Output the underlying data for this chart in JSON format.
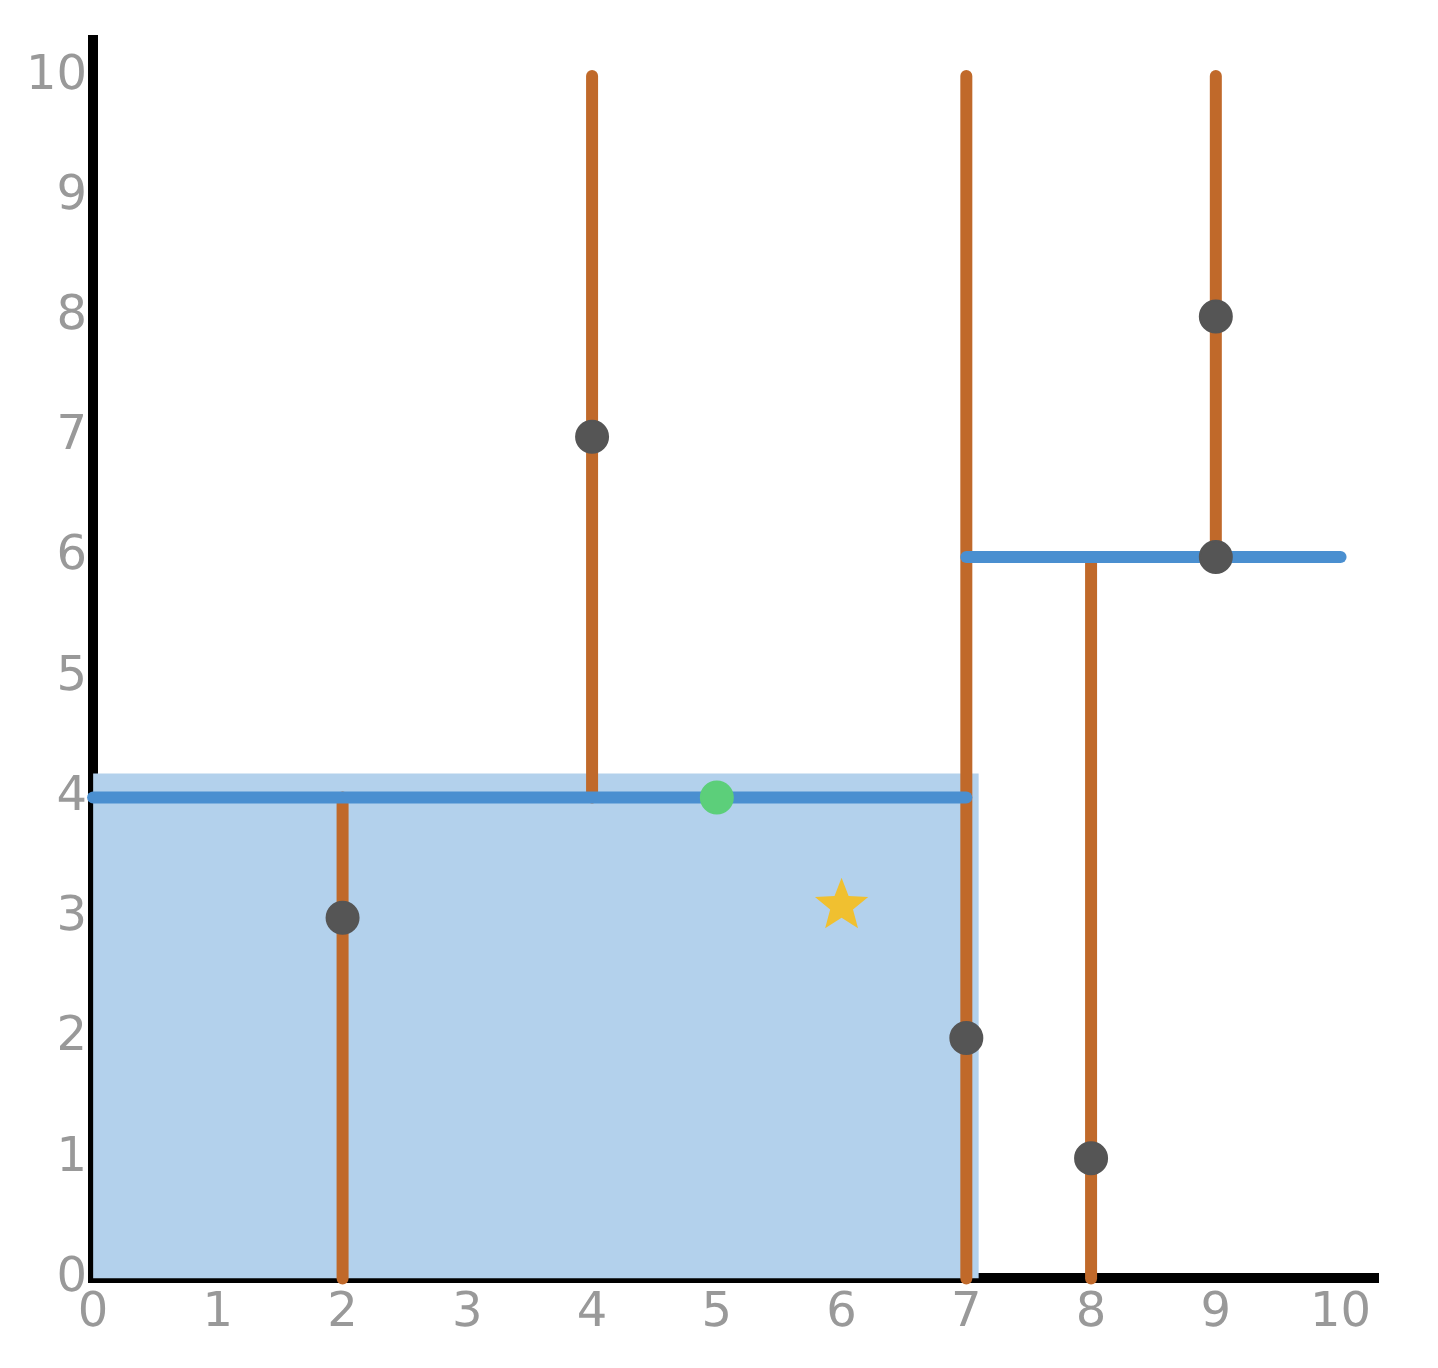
{
  "chart_data": {
    "type": "scatter",
    "xlim": [
      0,
      10.3
    ],
    "ylim": [
      0,
      10.3
    ],
    "xticks": [
      0,
      1,
      2,
      3,
      4,
      5,
      6,
      7,
      8,
      9,
      10
    ],
    "yticks": [
      0,
      1,
      2,
      3,
      4,
      5,
      6,
      7,
      8,
      9,
      10
    ],
    "grid": false,
    "legend": false,
    "series": [
      {
        "type": "area",
        "color": "#b3d1ec",
        "x": [
          0,
          7.1
        ],
        "values": [
          4.2,
          4.2
        ]
      },
      {
        "type": "line",
        "color": "#c0692a",
        "x": [
          2,
          2
        ],
        "values": [
          0,
          4
        ]
      },
      {
        "type": "line",
        "color": "#c0692a",
        "x": [
          4,
          4
        ],
        "values": [
          4,
          10
        ]
      },
      {
        "type": "line",
        "color": "#c0692a",
        "x": [
          7,
          7
        ],
        "values": [
          0,
          10
        ]
      },
      {
        "type": "line",
        "color": "#c0692a",
        "x": [
          8,
          8
        ],
        "values": [
          0,
          6
        ]
      },
      {
        "type": "line",
        "color": "#c0692a",
        "x": [
          9,
          9
        ],
        "values": [
          6,
          10
        ]
      },
      {
        "type": "line",
        "color": "#4a8fd0",
        "x": [
          0,
          7
        ],
        "values": [
          4,
          4
        ]
      },
      {
        "type": "line",
        "color": "#4a8fd0",
        "x": [
          7,
          10
        ],
        "values": [
          6,
          6
        ]
      },
      {
        "marker": "circle",
        "color": "#555555",
        "x": [
          2,
          4,
          7,
          8,
          9,
          9
        ],
        "values": [
          3,
          7,
          2,
          1,
          6,
          8
        ]
      },
      {
        "marker": "circle",
        "color": "#5ccf7a",
        "x": [
          5
        ],
        "values": [
          4
        ]
      },
      {
        "marker": "star",
        "color": "#f0c030",
        "x": [
          6
        ],
        "values": [
          3.1
        ]
      }
    ]
  }
}
